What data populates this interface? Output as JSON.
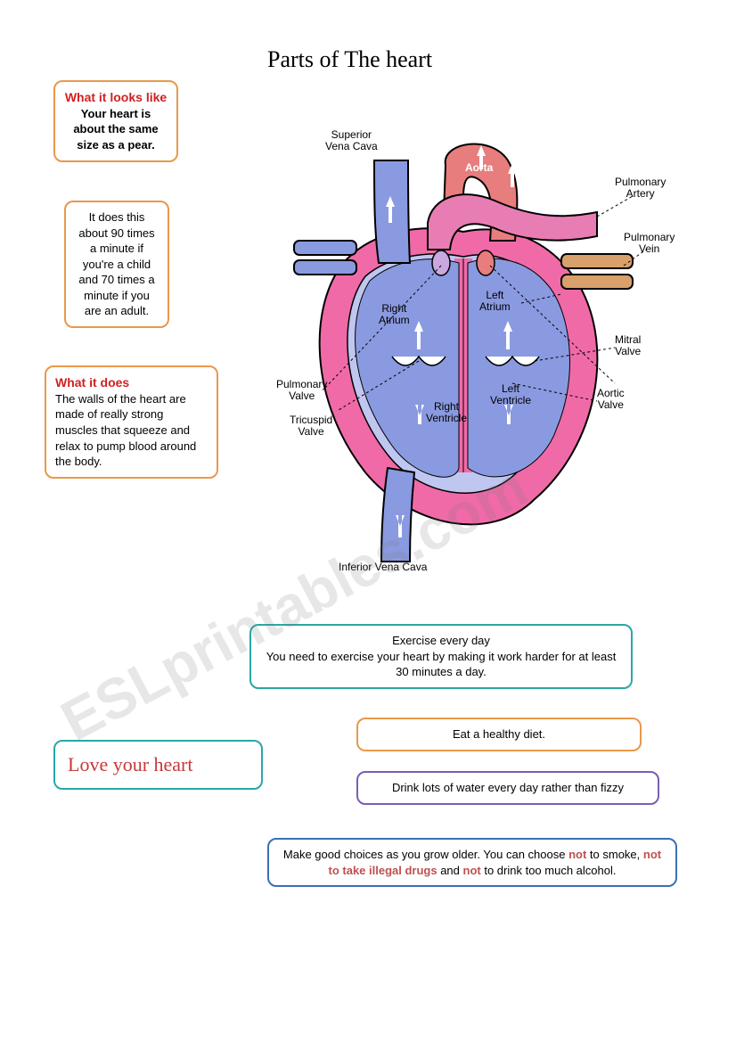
{
  "title": "Parts of The heart",
  "watermark": "ESLprintables.com",
  "boxes": {
    "looks_like": {
      "heading": "What it looks like",
      "body": "Your heart is about the same size as a pear.",
      "border": "#e8994a",
      "heading_color": "#d21f1f",
      "fontsize": 13
    },
    "rate": {
      "body": "It does this about 90 times a minute if you're a child and 70 times a minute if you are an adult.",
      "border": "#e8994a",
      "fontsize": 13
    },
    "does": {
      "heading": "What it does",
      "body": "The walls of the heart are made of really strong muscles that squeeze and relax to pump blood around the body.",
      "border": "#e8994a",
      "heading_color": "#d21f1f",
      "fontsize": 13
    },
    "love": {
      "text": "Love your heart",
      "border": "#2aa7a7",
      "color": "#c63a3a",
      "fontsize": 22
    },
    "exercise": {
      "heading": "Exercise every day",
      "body": "You need to exercise your heart by making it work harder for at least 30 minutes a day.",
      "border": "#2aa7a7"
    },
    "diet": {
      "body": "Eat a healthy diet.",
      "border": "#e8994a"
    },
    "water": {
      "body": "Drink lots of water every day rather than fizzy",
      "border": "#7a5fb0"
    },
    "choices": {
      "prefix": "Make good choices as you grow older. You can choose ",
      "not1": "not",
      "mid1": " to smoke, ",
      "not2": "not to take illegal drugs",
      "mid2": " and ",
      "not3": "not",
      "suffix": " to drink too much alcohol.",
      "border": "#3a6fb7"
    }
  },
  "diagram": {
    "type": "infographic",
    "background_color": "#ffffff",
    "colors": {
      "vein_blue": "#8a9ae0",
      "vein_blue_dark": "#6b7fd6",
      "artery_red": "#e77d7d",
      "artery_pink": "#e87db4",
      "muscle_pink": "#f06aa8",
      "inner_light": "#bfc6ef",
      "pulm_vein": "#d8a06a",
      "outline": "#000000"
    },
    "labels": {
      "svc": "Superior\nVena Cava",
      "aorta": "Aorta",
      "pulm_artery": "Pulmonary\nArtery",
      "pulm_vein": "Pulmonary\nVein",
      "left_atrium": "Left\nAtrium",
      "right_atrium": "Right\nAtrium",
      "mitral": "Mitral\nValve",
      "aortic": "Aortic\nValve",
      "left_ventricle": "Left\nVentricle",
      "right_ventricle": "Right\nVentricle",
      "pulm_valve": "Pulmonary\nValve",
      "tricuspid": "Tricuspid\nValve",
      "ivc": "Inferior Vena Cava"
    }
  }
}
